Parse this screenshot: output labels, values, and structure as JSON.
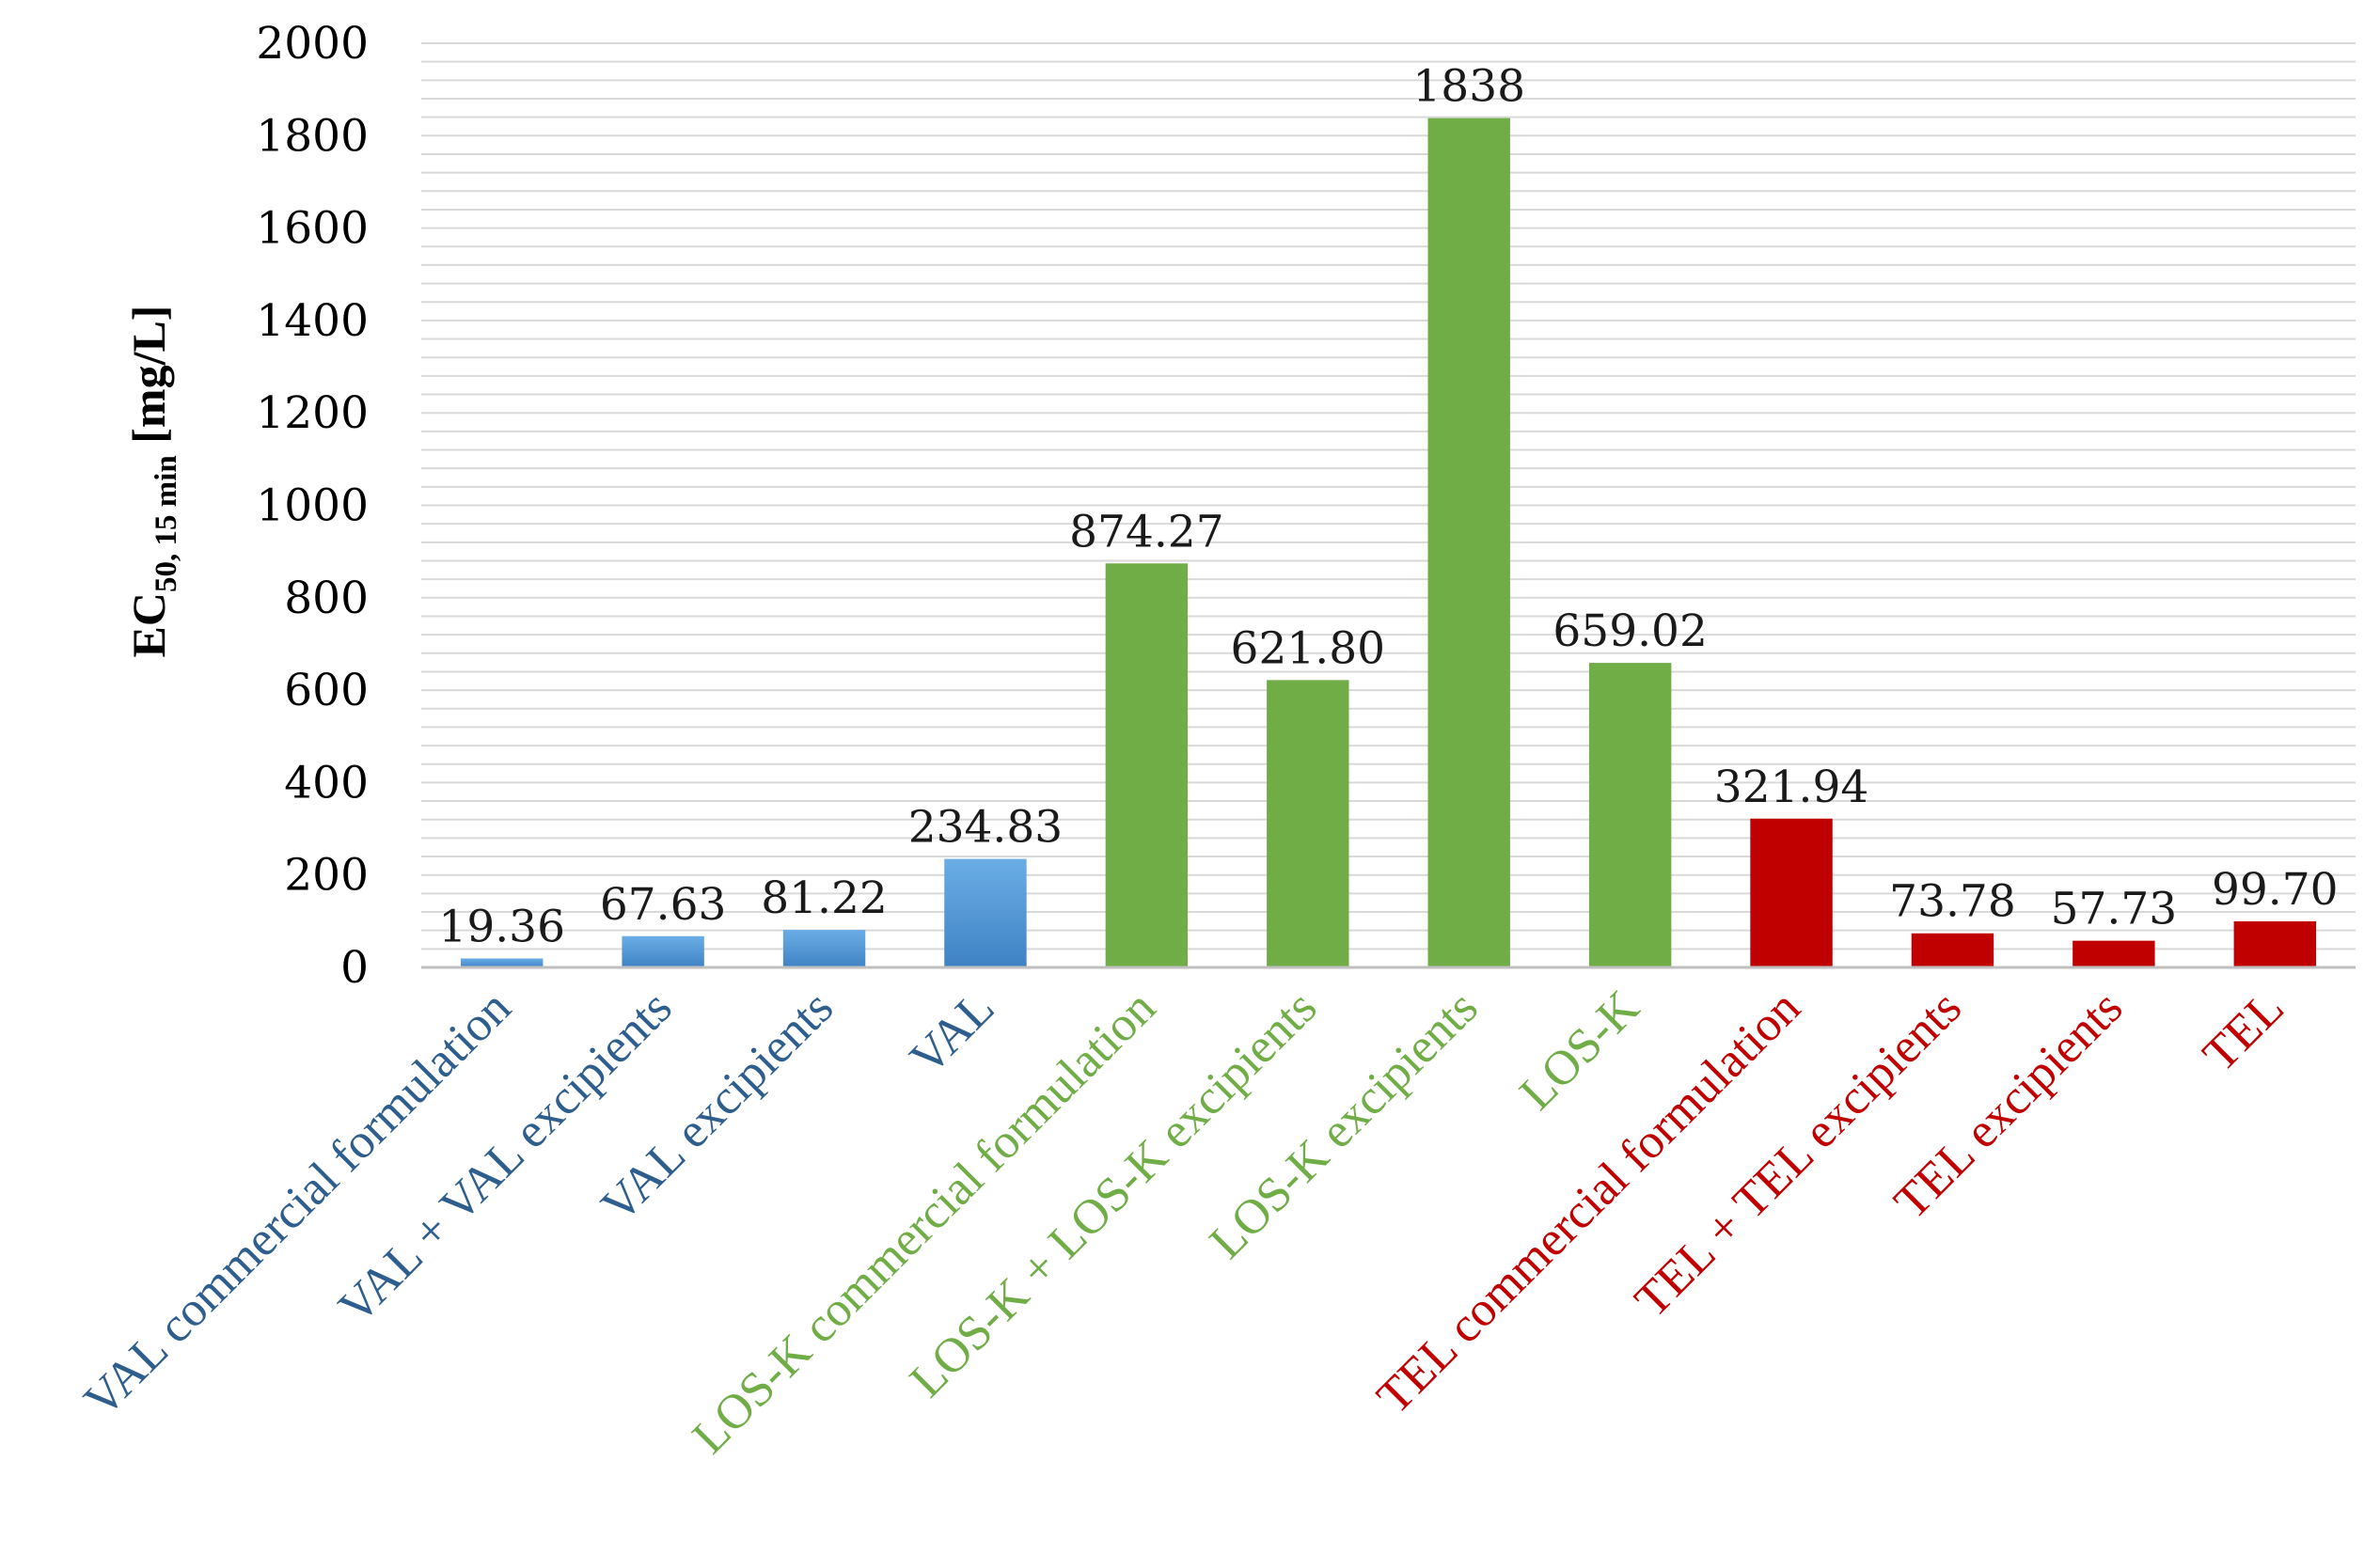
{
  "chart_data": {
    "type": "bar",
    "categories": [
      "VAL commercial formulation",
      "VAL + VAL excipients",
      "VAL excipients",
      "VAL",
      "LOS-K commercial formulation",
      "LOS-K + LOS-K excipients",
      "LOS-K excipients",
      "LOS-K",
      "TEL commercial formulation",
      "TEL + TEL excipients",
      "TEL excipients",
      "TEL"
    ],
    "values": [
      19.36,
      67.63,
      81.22,
      234.83,
      874.27,
      621.8,
      1838,
      659.02,
      321.94,
      73.78,
      57.73,
      99.7
    ],
    "value_labels": [
      "19.36",
      "67.63",
      "81.22",
      "234.83",
      "874.27",
      "621.80",
      "1838",
      "659.02",
      "321.94",
      "73.78",
      "57.73",
      "99.70"
    ],
    "groups": [
      "VAL",
      "VAL",
      "VAL",
      "VAL",
      "LOS-K",
      "LOS-K",
      "LOS-K",
      "LOS-K",
      "TEL",
      "TEL",
      "TEL",
      "TEL"
    ],
    "colors": {
      "VAL": "#5b9bd5",
      "VAL-label": "#2e5e8e",
      "LOS-K": "#70ad47",
      "LOS-K-label": "#70ad47",
      "TEL": "#c00000",
      "TEL-label": "#c00000",
      "grid": "#d9d9d9",
      "axis": "#bfbfbf"
    },
    "title": "",
    "xlabel": "",
    "ylabel": {
      "main": "EC",
      "subscript": "50, 15 min",
      "unit": " [mg/L]"
    },
    "ylim": [
      0,
      2000
    ],
    "yticks": [
      0,
      200,
      400,
      600,
      800,
      1000,
      1200,
      1400,
      1600,
      1800,
      2000
    ],
    "minor_grid_step": 40,
    "grid": true,
    "legend": "none"
  }
}
